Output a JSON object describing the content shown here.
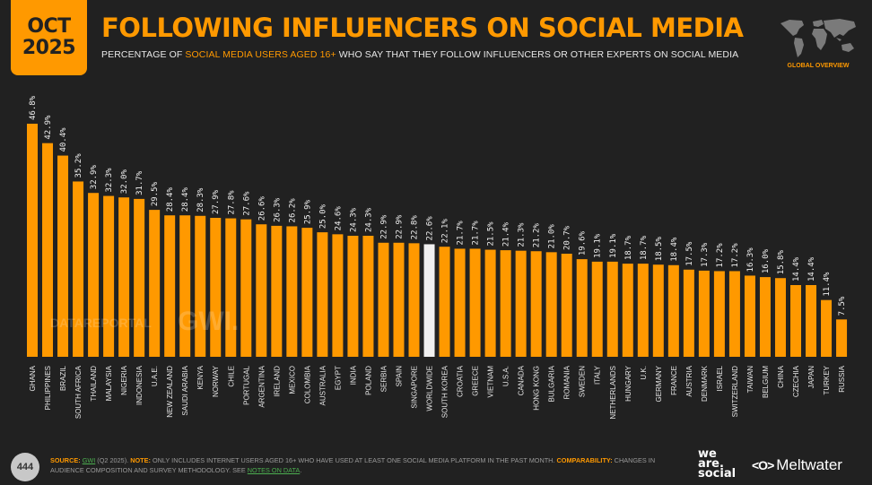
{
  "badge": {
    "month": "OCT",
    "year": "2025"
  },
  "header": {
    "title": "FOLLOWING INFLUENCERS ON SOCIAL MEDIA",
    "subtitle_pre": "PERCENTAGE OF ",
    "subtitle_highlight": "SOCIAL MEDIA USERS AGED 16+",
    "subtitle_post": " WHO SAY THAT THEY FOLLOW INFLUENCERS OR OTHER EXPERTS ON SOCIAL MEDIA",
    "region_label": "GLOBAL OVERVIEW",
    "region_icon": "world-map-icon"
  },
  "watermark": {
    "left": "DATAREPORTAL",
    "right": "GWI."
  },
  "colors": {
    "accent": "#FF9900",
    "highlight_bar": "#F0F0F0",
    "background": "#212121",
    "link": "#4CAF50"
  },
  "chart_data": {
    "type": "bar",
    "title": "FOLLOWING INFLUENCERS ON SOCIAL MEDIA",
    "xlabel": "",
    "ylabel": "",
    "ylim": [
      0,
      50
    ],
    "grid": false,
    "legend": "none",
    "value_suffix": "%",
    "highlight_category": "WORLDWIDE",
    "categories": [
      "GHANA",
      "PHILIPPINES",
      "BRAZIL",
      "SOUTH AFRICA",
      "THAILAND",
      "MALAYSIA",
      "NIGERIA",
      "INDONESIA",
      "U.A.E.",
      "NEW ZEALAND",
      "SAUDI ARABIA",
      "KENYA",
      "NORWAY",
      "CHILE",
      "PORTUGAL",
      "ARGENTINA",
      "IRELAND",
      "MEXICO",
      "COLOMBIA",
      "AUSTRALIA",
      "EGYPT",
      "INDIA",
      "POLAND",
      "SERBIA",
      "SPAIN",
      "SINGAPORE",
      "WORLDWIDE",
      "SOUTH KOREA",
      "CROATIA",
      "GREECE",
      "VIETNAM",
      "U.S.A.",
      "CANADA",
      "HONG KONG",
      "BULGARIA",
      "ROMANIA",
      "SWEDEN",
      "ITALY",
      "NETHERLANDS",
      "HUNGARY",
      "U.K.",
      "GERMANY",
      "FRANCE",
      "AUSTRIA",
      "DENMARK",
      "ISRAEL",
      "SWITZERLAND",
      "TAIWAN",
      "BELGIUM",
      "CHINA",
      "CZECHIA",
      "JAPAN",
      "TURKEY",
      "RUSSIA"
    ],
    "values": [
      46.8,
      42.9,
      40.4,
      35.2,
      32.9,
      32.3,
      32.0,
      31.7,
      29.5,
      28.4,
      28.4,
      28.3,
      27.9,
      27.8,
      27.6,
      26.6,
      26.3,
      26.2,
      25.9,
      25.0,
      24.6,
      24.3,
      24.3,
      22.9,
      22.9,
      22.8,
      22.6,
      22.1,
      21.7,
      21.7,
      21.5,
      21.4,
      21.3,
      21.2,
      21.0,
      20.7,
      19.6,
      19.1,
      19.1,
      18.7,
      18.7,
      18.5,
      18.4,
      17.5,
      17.3,
      17.2,
      17.2,
      16.3,
      16.0,
      15.8,
      14.4,
      14.4,
      11.4,
      7.5
    ],
    "labels": [
      "46.8%",
      "42.9%",
      "40.4%",
      "35.2%",
      "32.9%",
      "32.3%",
      "32.0%",
      "31.7%",
      "29.5%",
      "28.4%",
      "28.4%",
      "28.3%",
      "27.9%",
      "27.8%",
      "27.6%",
      "26.6%",
      "26.3%",
      "26.2%",
      "25.9%",
      "25.0%",
      "24.6%",
      "24.3%",
      "24.3%",
      "22.9%",
      "22.9%",
      "22.8%",
      "22.6%",
      "22.1%",
      "21.7%",
      "21.7%",
      "21.5%",
      "21.4%",
      "21.3%",
      "21.2%",
      "21.0%",
      "20.7%",
      "19.6%",
      "19.1%",
      "19.1%",
      "18.7%",
      "18.7%",
      "18.5%",
      "18.4%",
      "17.5%",
      "17.3%",
      "17.2%",
      "17.2%",
      "16.3%",
      "16.0%",
      "15.8%",
      "14.4%",
      "14.4%",
      "11.4%",
      "7.5%"
    ]
  },
  "footer": {
    "page_number": "444",
    "source_label": "SOURCE:",
    "source_link": "GWI",
    "source_text": " (Q2 2025). ",
    "note_label": "NOTE:",
    "note_text": " ONLY INCLUDES INTERNET USERS AGED 16+ WHO HAVE USED AT LEAST ONE SOCIAL MEDIA PLATFORM IN THE PAST MONTH. ",
    "comparability_label": "COMPARABILITY:",
    "comparability_text": " CHANGES IN AUDIENCE COMPOSITION AND SURVEY METHODOLOGY. SEE ",
    "notes_link": "NOTES ON DATA",
    "end": "."
  },
  "logos": {
    "we": "we",
    "are": "are.",
    "social": "social",
    "meltwater_icon": "<O>",
    "meltwater": "Meltwater"
  }
}
